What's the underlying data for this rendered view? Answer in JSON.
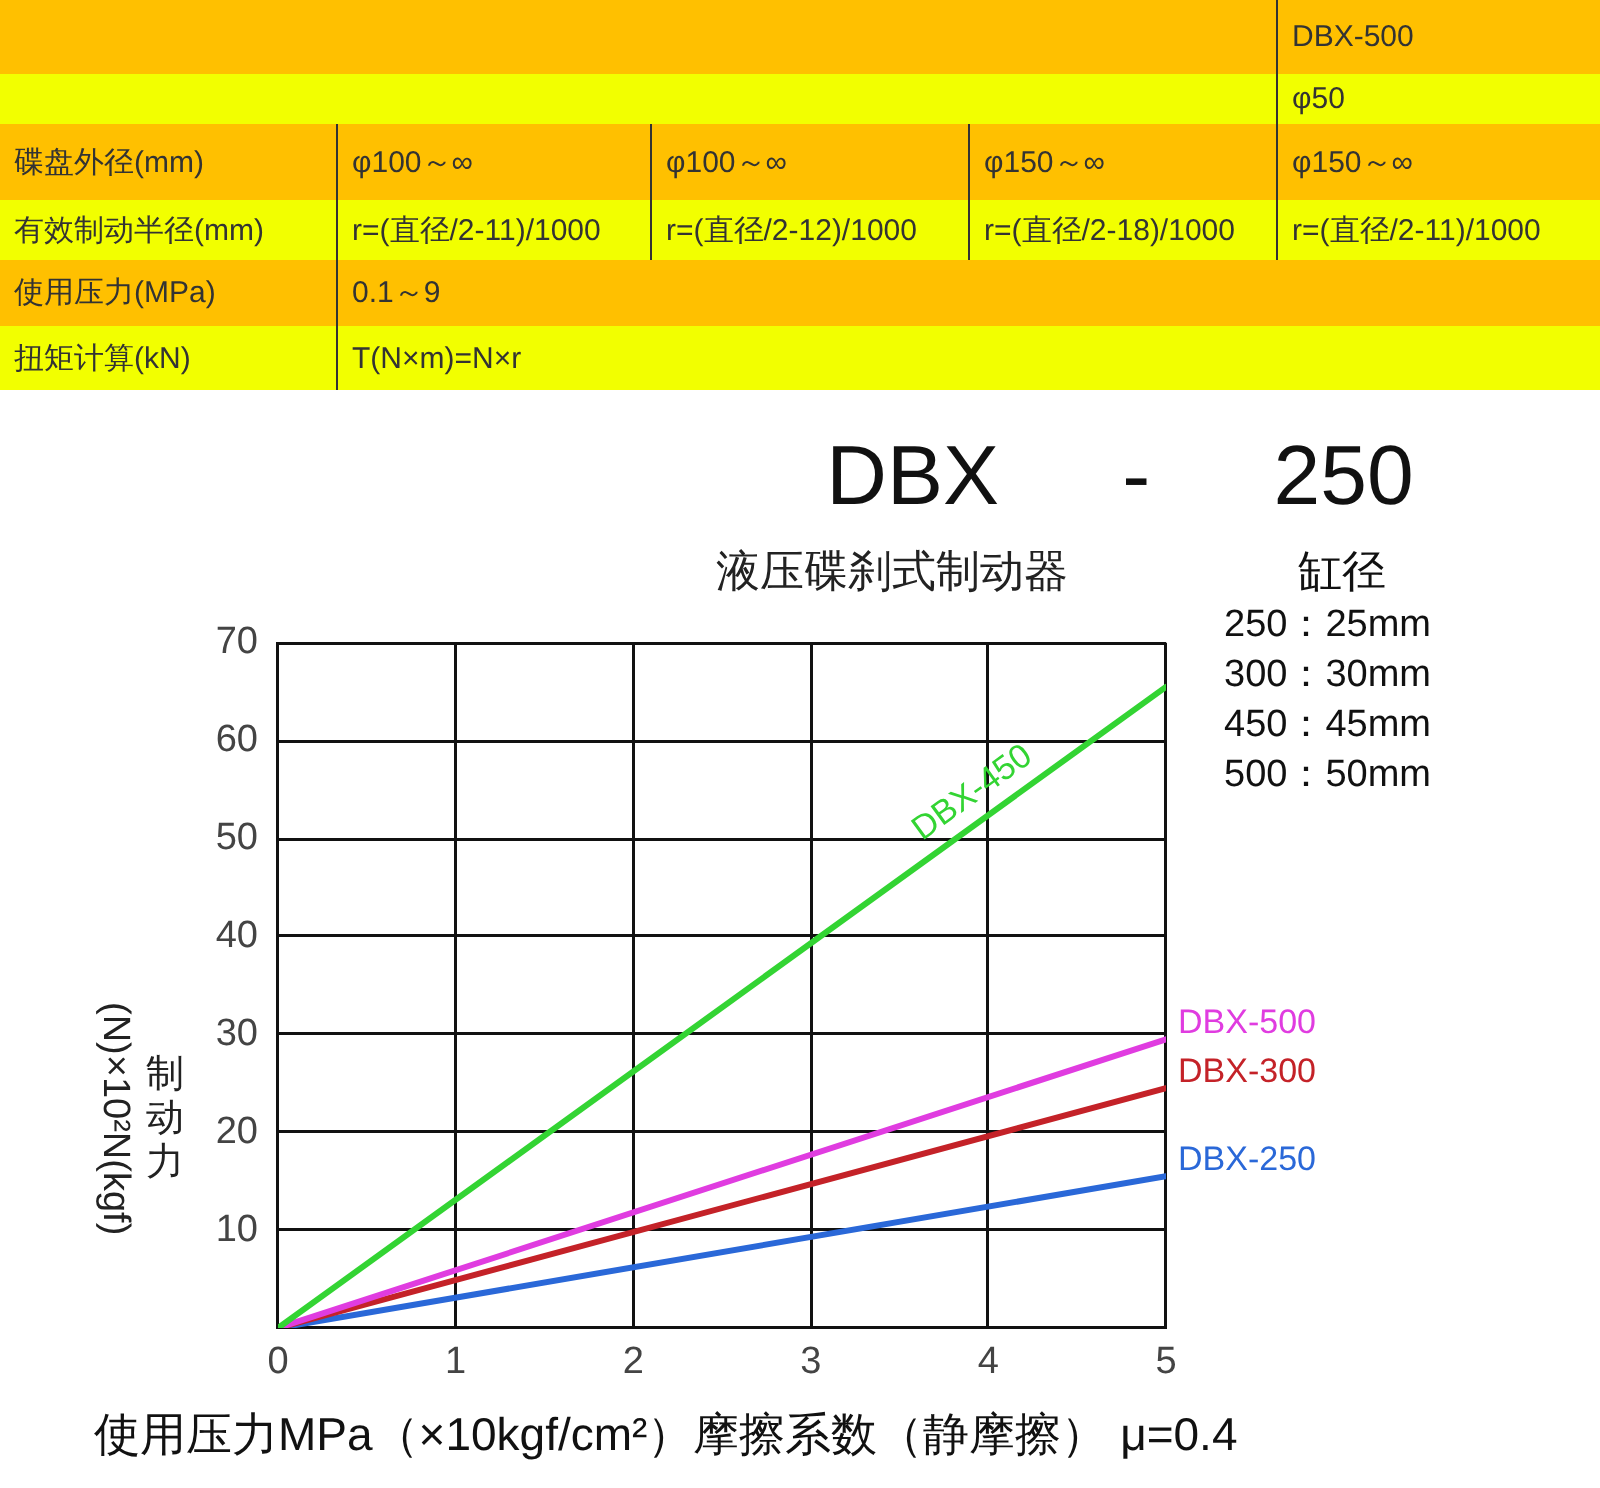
{
  "chart_data": [
    {
      "type": "other",
      "cell_labels": [
        [
          null,
          null,
          null,
          null,
          "DBX-500"
        ],
        [
          null,
          null,
          null,
          null,
          "φ50"
        ],
        [
          "碟盘外径(mm)",
          "φ100～∞",
          "φ100～∞",
          "φ150～∞",
          "φ150～∞"
        ],
        [
          "有效制动半径(mm)",
          "r=(直径/2-11)/1000",
          "r=(直径/2-12)/1000",
          "r=(直径/2-18)/1000",
          "r=(直径/2-11)/1000"
        ],
        [
          "使用压力(MPa)",
          "0.1～9",
          null,
          null,
          null
        ],
        [
          "扭矩计算(kN)",
          "T(N×m)=N×r",
          null,
          null,
          null
        ]
      ]
    },
    {
      "type": "line",
      "title": "DBX - 250",
      "subtitle": "液压碟刹式制动器",
      "xlabel": "使用压力MPa（×10kgf/cm²）摩擦系数（静摩擦） μ=0.4",
      "ylabel": "制动力(N)×10²N(kgf)",
      "annotations": [
        "缸径",
        "250：25mm",
        "300：30mm",
        "450：45mm",
        "500：50mm"
      ],
      "x": [
        0,
        5
      ],
      "series": [
        {
          "name": "DBX-450",
          "color": "#33d433",
          "values": [
            0,
            65.5
          ]
        },
        {
          "name": "DBX-500",
          "color": "#e03ce0",
          "values": [
            0,
            29.5
          ]
        },
        {
          "name": "DBX-300",
          "color": "#c42228",
          "values": [
            0,
            24.5
          ]
        },
        {
          "name": "DBX-250",
          "color": "#2a68d8",
          "values": [
            0,
            15.5
          ]
        }
      ],
      "xlim": [
        0,
        5
      ],
      "xticks": [
        0,
        1,
        2,
        3,
        4,
        5
      ],
      "ylim": [
        0,
        70
      ],
      "yticks": [
        {
          "value": 0,
          "label": null
        },
        10,
        20,
        30,
        40,
        50,
        60,
        70
      ],
      "grid": true,
      "legend": false
    }
  ]
}
